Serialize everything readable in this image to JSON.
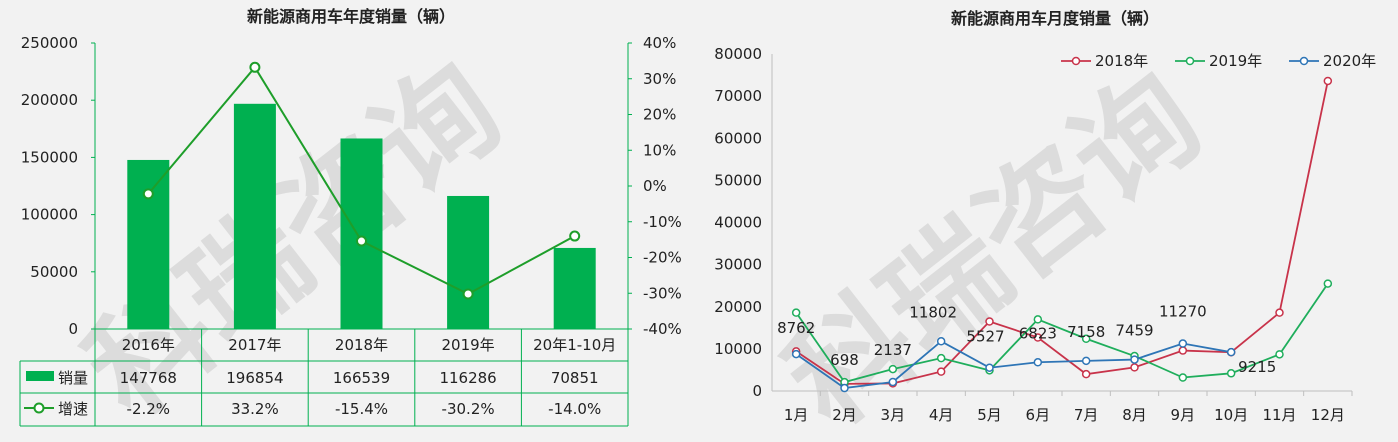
{
  "colors": {
    "background": "#f2f2f2",
    "bar": "#00b050",
    "growth_line": "#1e9e2a",
    "s2018": "#c8334a",
    "s2019": "#1fae5c",
    "s2020": "#2e75b6",
    "grid": "#d9d9d9",
    "axis": "#00b050",
    "watermark": "#dcdcdc"
  },
  "watermark": {
    "text": "科瑞咨询"
  },
  "chart_data": [
    {
      "type": "bar",
      "title": "新能源商用车年度销量（辆）",
      "categories": [
        "2016年",
        "2017年",
        "2018年",
        "2019年",
        "20年1-10月"
      ],
      "series": [
        {
          "name": "销量",
          "values": [
            147768,
            196854,
            166539,
            116286,
            70851
          ],
          "display": [
            "147768",
            "196854",
            "166539",
            "116286",
            "70851"
          ],
          "axis": "left"
        },
        {
          "name": "增速",
          "type": "line",
          "values": [
            -2.2,
            33.2,
            -15.4,
            -30.2,
            -14.0
          ],
          "display": [
            "-2.2%",
            "33.2%",
            "-15.4%",
            "-30.2%",
            "-14.0%"
          ],
          "axis": "right"
        }
      ],
      "ylim": [
        0,
        250000
      ],
      "yticks": [
        "0",
        "50000",
        "100000",
        "150000",
        "200000",
        "250000"
      ],
      "y2lim": [
        -40,
        40
      ],
      "y2ticks": [
        "-40%",
        "-30%",
        "-20%",
        "-10%",
        "0%",
        "10%",
        "20%",
        "30%",
        "40%"
      ],
      "legend": "data-table"
    },
    {
      "type": "line",
      "title": "新能源商用车月度销量（辆）",
      "categories": [
        "1月",
        "2月",
        "3月",
        "4月",
        "5月",
        "6月",
        "7月",
        "8月",
        "9月",
        "10月",
        "11月",
        "12月"
      ],
      "ylim": [
        0,
        80000
      ],
      "yticks": [
        "0",
        "10000",
        "20000",
        "30000",
        "40000",
        "50000",
        "60000",
        "70000",
        "80000"
      ],
      "series": [
        {
          "name": "2018年",
          "values": [
            9400,
            1700,
            1800,
            4600,
            16500,
            12700,
            4000,
            5600,
            9600,
            9200,
            18600,
            73600
          ]
        },
        {
          "name": "2019年",
          "values": [
            18600,
            2100,
            5200,
            7800,
            4900,
            17000,
            12400,
            8300,
            3200,
            4200,
            8700,
            25500
          ]
        },
        {
          "name": "2020年",
          "values": [
            8762,
            698,
            2137,
            11802,
            5527,
            6823,
            7158,
            7459,
            11270,
            9215,
            null,
            null
          ]
        }
      ],
      "data_labels": {
        "series": "2020年",
        "labels": [
          "8762",
          "698",
          "2137",
          "11802",
          "5527",
          "6823",
          "7158",
          "7459",
          "11270",
          "9215",
          "",
          ""
        ]
      },
      "legend": "top-right",
      "grid": false
    }
  ]
}
